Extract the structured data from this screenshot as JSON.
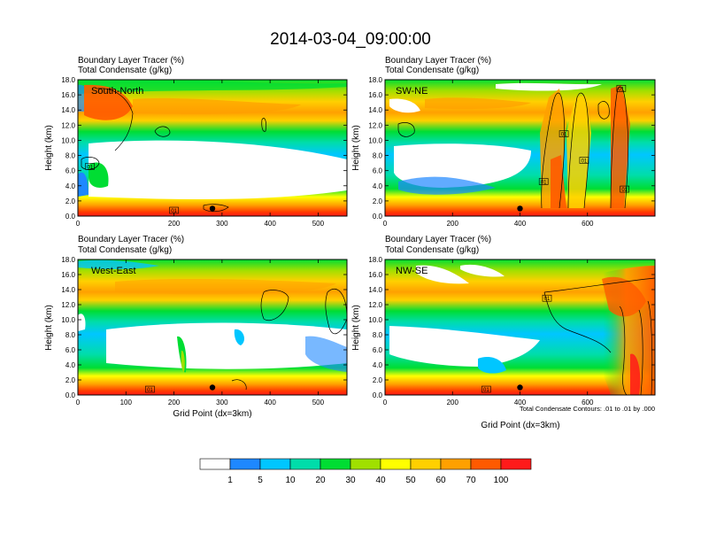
{
  "figure": {
    "title": "2014-03-04_09:00:00",
    "x_axis_label": "Grid Point (dx=3km)",
    "contour_note": "Total Condensate Contours: .01 to .01 by .000"
  },
  "colors": {
    "levels": [
      "#ffffff",
      "#1e88ff",
      "#00c6ff",
      "#00ddaa",
      "#00dd33",
      "#a0e000",
      "#ffff00",
      "#ffd000",
      "#ffa000",
      "#ff5a00",
      "#ff1a1a"
    ],
    "colorbar_labels": [
      "1",
      "5",
      "10",
      "20",
      "30",
      "40",
      "50",
      "60",
      "70",
      "100"
    ]
  },
  "chart_data": [
    {
      "type": "heatmap",
      "panel": "South-North",
      "subtitle_line1": "Boundary Layer Tracer   (%)",
      "subtitle_line2": "Total Condensate   (g/kg)",
      "ylabel": "Height (km)",
      "xlabel": "",
      "xlim": [
        0,
        560
      ],
      "ylim": [
        0,
        18
      ],
      "xticks": [
        "0",
        "200",
        "300",
        "400",
        "500"
      ],
      "xtick_values": [
        0,
        200,
        300,
        400,
        500
      ],
      "yticks": [
        "0.0",
        "2.0",
        "4.0",
        "6.0",
        "8.0",
        "10.0",
        "12.0",
        "14.0",
        "16.0",
        "18.0"
      ],
      "ytick_values": [
        0,
        2,
        4,
        6,
        8,
        10,
        12,
        14,
        16,
        18
      ],
      "contour_labels": [
        {
          "text": "01",
          "x": 25,
          "y": 6.5
        },
        {
          "text": "01",
          "x": 200,
          "y": 0.7
        }
      ],
      "marker": {
        "x": 280,
        "y": 1.0
      }
    },
    {
      "type": "heatmap",
      "panel": "SW-NE",
      "subtitle_line1": "Boundary Layer Tracer   (%)",
      "subtitle_line2": "Total Condensate   (g/kg)",
      "ylabel": "Height (km)",
      "xlabel": "",
      "xlim": [
        0,
        800
      ],
      "ylim": [
        0,
        18
      ],
      "xticks": [
        "0",
        "200",
        "400",
        "600"
      ],
      "xtick_values": [
        0,
        200,
        400,
        600
      ],
      "yticks": [
        "0.0",
        "2.0",
        "4.0",
        "6.0",
        "8.0",
        "10.0",
        "12.0",
        "14.0",
        "16.0",
        "18.0"
      ],
      "ytick_values": [
        0,
        2,
        4,
        6,
        8,
        10,
        12,
        14,
        16,
        18
      ],
      "contour_labels": [
        {
          "text": "01",
          "x": 470,
          "y": 4.5
        },
        {
          "text": "01",
          "x": 530,
          "y": 10.8
        },
        {
          "text": "01",
          "x": 590,
          "y": 7.3
        },
        {
          "text": "01",
          "x": 700,
          "y": 16.8
        },
        {
          "text": "01",
          "x": 710,
          "y": 3.5
        }
      ],
      "marker": {
        "x": 400,
        "y": 1.0
      }
    },
    {
      "type": "heatmap",
      "panel": "West-East",
      "subtitle_line1": "Boundary Layer Tracer   (%)",
      "subtitle_line2": "Total Condensate   (g/kg)",
      "ylabel": "Height (km)",
      "xlabel": "Grid Point (dx=3km)",
      "xlim": [
        0,
        560
      ],
      "ylim": [
        0,
        18
      ],
      "xticks": [
        "0",
        "100",
        "200",
        "300",
        "400",
        "500"
      ],
      "xtick_values": [
        0,
        100,
        200,
        300,
        400,
        500
      ],
      "yticks": [
        "0.0",
        "2.0",
        "4.0",
        "6.0",
        "8.0",
        "10.0",
        "12.0",
        "14.0",
        "16.0",
        "18.0"
      ],
      "ytick_values": [
        0,
        2,
        4,
        6,
        8,
        10,
        12,
        14,
        16,
        18
      ],
      "contour_labels": [
        {
          "text": "01",
          "x": 150,
          "y": 0.7
        }
      ],
      "marker": {
        "x": 280,
        "y": 1.0
      }
    },
    {
      "type": "heatmap",
      "panel": "NW-SE",
      "subtitle_line1": "Boundary Layer Tracer   (%)",
      "subtitle_line2": "Total Condensate   (g/kg)",
      "ylabel": "Height (km)",
      "xlabel": "Grid Point (dx=3km)",
      "xlim": [
        0,
        800
      ],
      "ylim": [
        0,
        18
      ],
      "xticks": [
        "0",
        "200",
        "400",
        "600"
      ],
      "xtick_values": [
        0,
        200,
        400,
        600
      ],
      "yticks": [
        "0.0",
        "2.0",
        "4.0",
        "6.0",
        "8.0",
        "10.0",
        "12.0",
        "14.0",
        "16.0",
        "18.0"
      ],
      "ytick_values": [
        0,
        2,
        4,
        6,
        8,
        10,
        12,
        14,
        16,
        18
      ],
      "contour_labels": [
        {
          "text": "01",
          "x": 480,
          "y": 12.8
        },
        {
          "text": "01",
          "x": 300,
          "y": 0.7
        }
      ],
      "marker": {
        "x": 400,
        "y": 1.0
      }
    }
  ]
}
